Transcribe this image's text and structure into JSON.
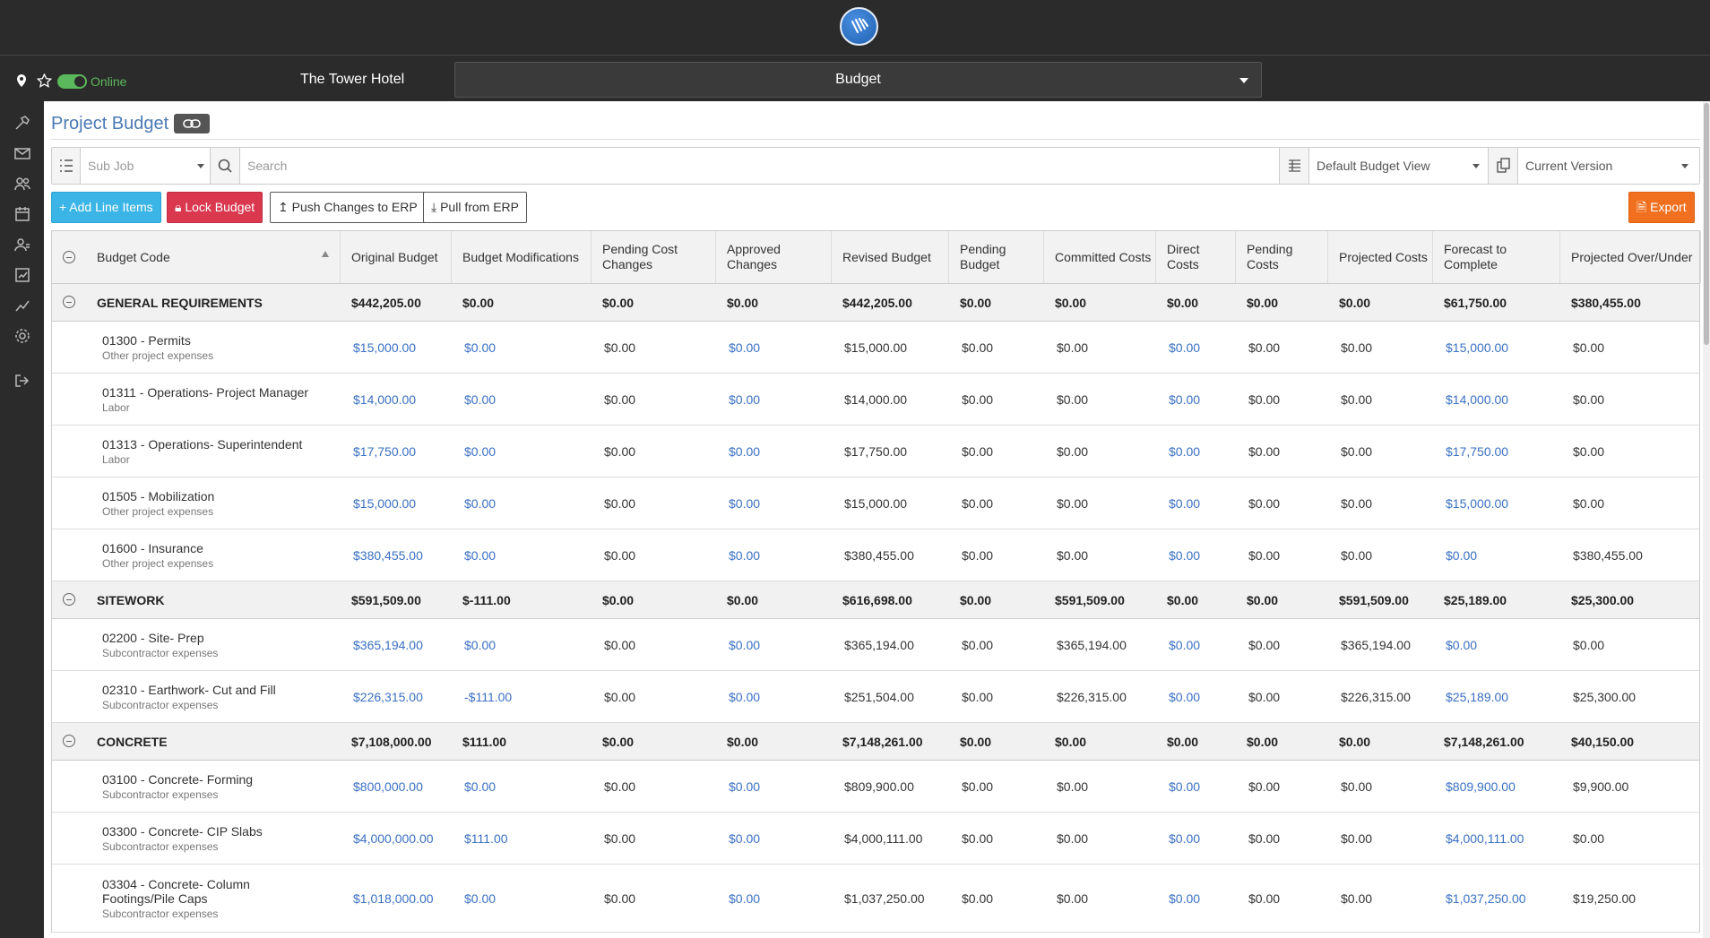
{
  "header": {
    "status": "Online",
    "project": "The Tower Hotel",
    "module": "Budget"
  },
  "page": {
    "title": "Project Budget"
  },
  "filters": {
    "subjob_placeholder": "Sub Job",
    "search_placeholder": "Search",
    "view": "Default Budget View",
    "version": "Current Version"
  },
  "toolbar": {
    "add": "+ Add Line Items",
    "lock": "Lock Budget",
    "push": "Push Changes to ERP",
    "pull": "Pull from ERP",
    "export": "Export"
  },
  "columns": [
    "Budget Code",
    "Original Budget",
    "Budget Modifications",
    "Pending Cost Changes",
    "Approved Changes",
    "Revised Budget",
    "Pending Budget",
    "Committed Costs",
    "Direct Costs",
    "Pending Costs",
    "Projected Costs",
    "Forecast to Complete",
    "Projected Over/Under"
  ],
  "groups": [
    {
      "name": "GENERAL REQUIREMENTS",
      "totals": [
        "$442,205.00",
        "$0.00",
        "$0.00",
        "$0.00",
        "$442,205.00",
        "$0.00",
        "$0.00",
        "$0.00",
        "$0.00",
        "$0.00",
        "$61,750.00",
        "$380,455.00"
      ],
      "items": [
        {
          "code": "01300 - Permits",
          "sub": "Other project expenses",
          "values": [
            "$15,000.00",
            "$0.00",
            "$0.00",
            "$0.00",
            "$15,000.00",
            "$0.00",
            "$0.00",
            "$0.00",
            "$0.00",
            "$0.00",
            "$15,000.00",
            "$0.00"
          ]
        },
        {
          "code": "01311 - Operations- Project Manager",
          "sub": "Labor",
          "values": [
            "$14,000.00",
            "$0.00",
            "$0.00",
            "$0.00",
            "$14,000.00",
            "$0.00",
            "$0.00",
            "$0.00",
            "$0.00",
            "$0.00",
            "$14,000.00",
            "$0.00"
          ]
        },
        {
          "code": "01313 - Operations- Superintendent",
          "sub": "Labor",
          "values": [
            "$17,750.00",
            "$0.00",
            "$0.00",
            "$0.00",
            "$17,750.00",
            "$0.00",
            "$0.00",
            "$0.00",
            "$0.00",
            "$0.00",
            "$17,750.00",
            "$0.00"
          ]
        },
        {
          "code": "01505 - Mobilization",
          "sub": "Other project expenses",
          "values": [
            "$15,000.00",
            "$0.00",
            "$0.00",
            "$0.00",
            "$15,000.00",
            "$0.00",
            "$0.00",
            "$0.00",
            "$0.00",
            "$0.00",
            "$15,000.00",
            "$0.00"
          ]
        },
        {
          "code": "01600 - Insurance",
          "sub": "Other project expenses",
          "values": [
            "$380,455.00",
            "$0.00",
            "$0.00",
            "$0.00",
            "$380,455.00",
            "$0.00",
            "$0.00",
            "$0.00",
            "$0.00",
            "$0.00",
            "$0.00",
            "$380,455.00"
          ]
        }
      ]
    },
    {
      "name": "SITEWORK",
      "totals": [
        "$591,509.00",
        "$-111.00",
        "$0.00",
        "$0.00",
        "$616,698.00",
        "$0.00",
        "$591,509.00",
        "$0.00",
        "$0.00",
        "$591,509.00",
        "$25,189.00",
        "$25,300.00"
      ],
      "items": [
        {
          "code": "02200 - Site- Prep",
          "sub": "Subcontractor expenses",
          "values": [
            "$365,194.00",
            "$0.00",
            "$0.00",
            "$0.00",
            "$365,194.00",
            "$0.00",
            "$365,194.00",
            "$0.00",
            "$0.00",
            "$365,194.00",
            "$0.00",
            "$0.00"
          ]
        },
        {
          "code": "02310 - Earthwork- Cut and Fill",
          "sub": "Subcontractor expenses",
          "values": [
            "$226,315.00",
            "-$111.00",
            "$0.00",
            "$0.00",
            "$251,504.00",
            "$0.00",
            "$226,315.00",
            "$0.00",
            "$0.00",
            "$226,315.00",
            "$25,189.00",
            "$25,300.00"
          ]
        }
      ]
    },
    {
      "name": "CONCRETE",
      "totals": [
        "$7,108,000.00",
        "$111.00",
        "$0.00",
        "$0.00",
        "$7,148,261.00",
        "$0.00",
        "$0.00",
        "$0.00",
        "$0.00",
        "$0.00",
        "$7,148,261.00",
        "$40,150.00"
      ],
      "items": [
        {
          "code": "03100 - Concrete- Forming",
          "sub": "Subcontractor expenses",
          "values": [
            "$800,000.00",
            "$0.00",
            "$0.00",
            "$0.00",
            "$809,900.00",
            "$0.00",
            "$0.00",
            "$0.00",
            "$0.00",
            "$0.00",
            "$809,900.00",
            "$9,900.00"
          ]
        },
        {
          "code": "03300 - Concrete- CIP Slabs",
          "sub": "Subcontractor expenses",
          "values": [
            "$4,000,000.00",
            "$111.00",
            "$0.00",
            "$0.00",
            "$4,000,111.00",
            "$0.00",
            "$0.00",
            "$0.00",
            "$0.00",
            "$0.00",
            "$4,000,111.00",
            "$0.00"
          ]
        },
        {
          "code": "03304 - Concrete- Column Footings/Pile Caps",
          "sub": "Subcontractor expenses",
          "values": [
            "$1,018,000.00",
            "$0.00",
            "$0.00",
            "$0.00",
            "$1,037,250.00",
            "$0.00",
            "$0.00",
            "$0.00",
            "$0.00",
            "$0.00",
            "$1,037,250.00",
            "$19,250.00"
          ]
        }
      ]
    }
  ],
  "colors": {
    "link_blue": "#3a70c2",
    "negative": "#d9384f",
    "online_green": "#5cb85c"
  }
}
